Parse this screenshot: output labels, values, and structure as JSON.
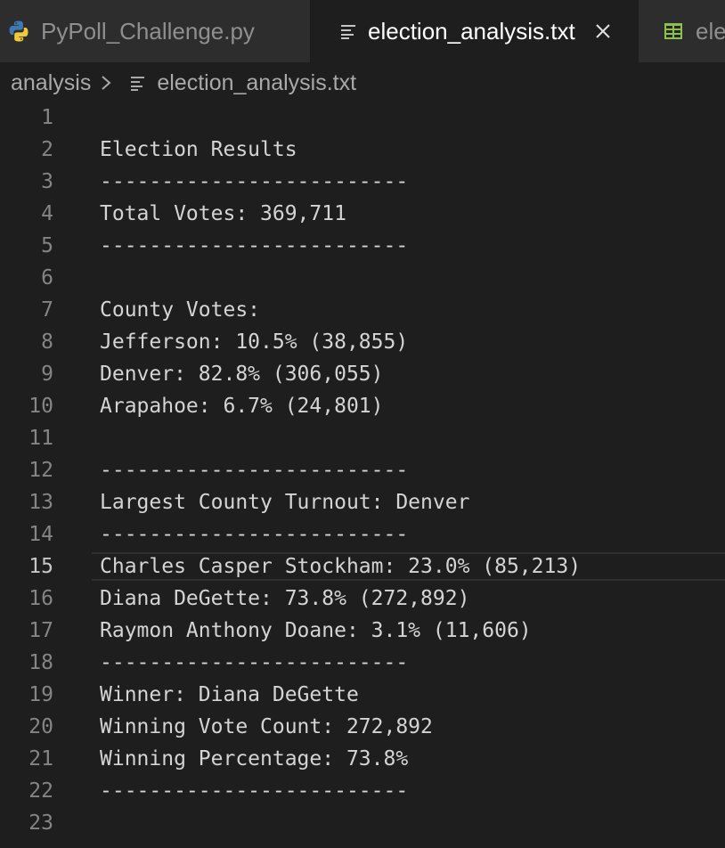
{
  "tabs": [
    {
      "label": "PyPoll_Challenge.py",
      "icon": "python-icon",
      "active": false
    },
    {
      "label": "election_analysis.txt",
      "icon": "text-file-icon",
      "active": true
    },
    {
      "label": "election_results.csv",
      "icon": "csv-table-icon",
      "active": false
    }
  ],
  "breadcrumb": {
    "folder": "analysis",
    "file": "election_analysis.txt"
  },
  "editor": {
    "active_line": 15,
    "lines": [
      {
        "num": "1",
        "text": ""
      },
      {
        "num": "2",
        "text": "Election Results"
      },
      {
        "num": "3",
        "text": "-------------------------"
      },
      {
        "num": "4",
        "text": "Total Votes: 369,711"
      },
      {
        "num": "5",
        "text": "-------------------------"
      },
      {
        "num": "6",
        "text": ""
      },
      {
        "num": "7",
        "text": "County Votes:"
      },
      {
        "num": "8",
        "text": "Jefferson: 10.5% (38,855)"
      },
      {
        "num": "9",
        "text": "Denver: 82.8% (306,055)"
      },
      {
        "num": "10",
        "text": "Arapahoe: 6.7% (24,801)"
      },
      {
        "num": "11",
        "text": ""
      },
      {
        "num": "12",
        "text": "-------------------------"
      },
      {
        "num": "13",
        "text": "Largest County Turnout: Denver"
      },
      {
        "num": "14",
        "text": "-------------------------"
      },
      {
        "num": "15",
        "text": "Charles Casper Stockham: 23.0% (85,213)"
      },
      {
        "num": "16",
        "text": "Diana DeGette: 73.8% (272,892)"
      },
      {
        "num": "17",
        "text": "Raymon Anthony Doane: 3.1% (11,606)"
      },
      {
        "num": "18",
        "text": "-------------------------"
      },
      {
        "num": "19",
        "text": "Winner: Diana DeGette"
      },
      {
        "num": "20",
        "text": "Winning Vote Count: 272,892"
      },
      {
        "num": "21",
        "text": "Winning Percentage: 73.8%"
      },
      {
        "num": "22",
        "text": "-------------------------"
      },
      {
        "num": "23",
        "text": ""
      }
    ]
  },
  "colors": {
    "background": "#1e1e1e",
    "tab_inactive": "#2d2d2d",
    "python_blue": "#3d7ab5",
    "python_yellow": "#f0c93a",
    "csv_green": "#8dc149"
  }
}
